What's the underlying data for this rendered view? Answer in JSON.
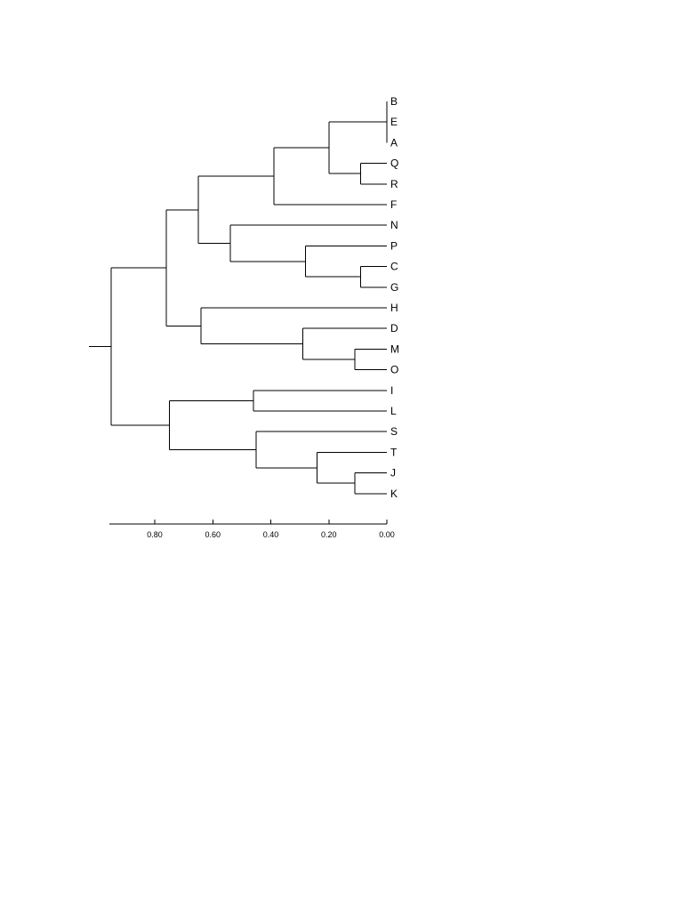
{
  "chart_data": {
    "type": "dendrogram",
    "orientation": "left",
    "leaves": [
      "B",
      "E",
      "A",
      "Q",
      "R",
      "F",
      "N",
      "P",
      "C",
      "G",
      "H",
      "D",
      "M",
      "O",
      "I",
      "L",
      "S",
      "T",
      "J",
      "K"
    ],
    "axis": {
      "range": [
        0.95,
        0.0
      ],
      "ticks": [
        0.8,
        0.6,
        0.4,
        0.2,
        0.0
      ],
      "tick_labels": [
        "0.80",
        "0.60",
        "0.40",
        "0.20",
        "0.00"
      ]
    },
    "tree": {
      "h": 0.95,
      "children": [
        {
          "h": 0.76,
          "children": [
            {
              "h": 0.65,
              "children": [
                {
                  "h": 0.39,
                  "children": [
                    {
                      "h": 0.2,
                      "children": [
                        {
                          "h": 0.0,
                          "children": [
                            {
                              "leaf": "B"
                            },
                            {
                              "leaf": "E"
                            },
                            {
                              "leaf": "A"
                            }
                          ]
                        },
                        {
                          "h": 0.09,
                          "children": [
                            {
                              "leaf": "Q"
                            },
                            {
                              "leaf": "R"
                            }
                          ]
                        }
                      ]
                    },
                    {
                      "leaf": "F"
                    }
                  ]
                },
                {
                  "h": 0.54,
                  "children": [
                    {
                      "leaf": "N"
                    },
                    {
                      "h": 0.28,
                      "children": [
                        {
                          "leaf": "P"
                        },
                        {
                          "h": 0.09,
                          "children": [
                            {
                              "leaf": "C"
                            },
                            {
                              "leaf": "G"
                            }
                          ]
                        }
                      ]
                    }
                  ]
                }
              ]
            },
            {
              "h": 0.64,
              "children": [
                {
                  "leaf": "H"
                },
                {
                  "h": 0.29,
                  "children": [
                    {
                      "leaf": "D"
                    },
                    {
                      "h": 0.11,
                      "children": [
                        {
                          "leaf": "M"
                        },
                        {
                          "leaf": "O"
                        }
                      ]
                    }
                  ]
                }
              ]
            }
          ]
        },
        {
          "h": 0.75,
          "children": [
            {
              "h": 0.46,
              "children": [
                {
                  "leaf": "I"
                },
                {
                  "leaf": "L"
                }
              ]
            },
            {
              "h": 0.45,
              "children": [
                {
                  "leaf": "S"
                },
                {
                  "h": 0.24,
                  "children": [
                    {
                      "leaf": "T"
                    },
                    {
                      "h": 0.11,
                      "children": [
                        {
                          "leaf": "J"
                        },
                        {
                          "leaf": "K"
                        }
                      ]
                    }
                  ]
                }
              ]
            }
          ]
        }
      ]
    }
  }
}
